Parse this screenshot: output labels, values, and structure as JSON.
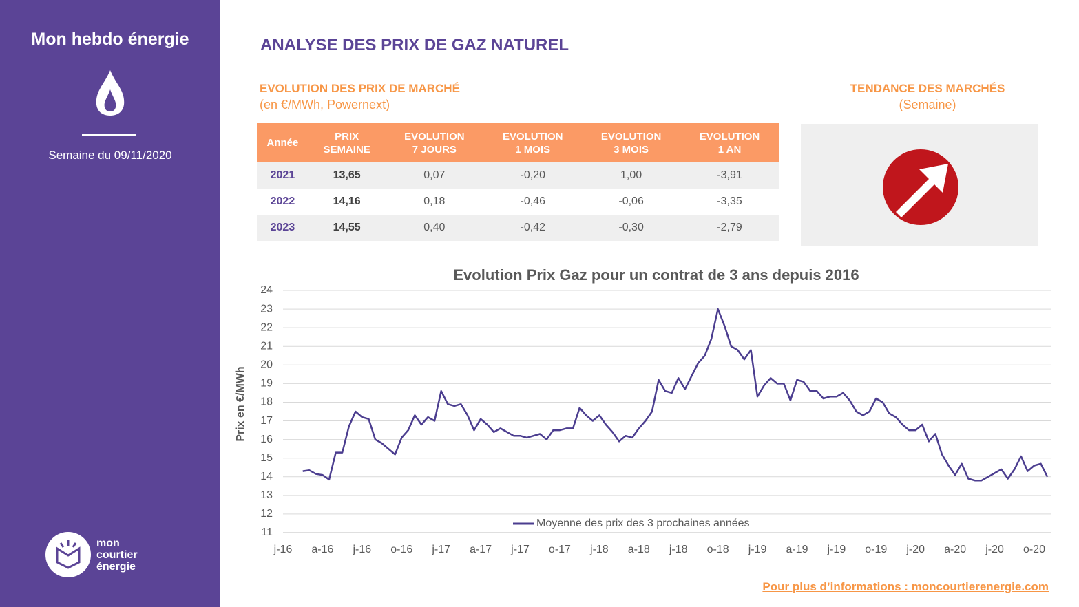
{
  "sidebar": {
    "title": "Mon hebdo énergie",
    "week": "Semaine du 09/11/2020",
    "logo_text": "mon\ncourtier\nénergie"
  },
  "header": {
    "title": "ANALYSE DES PRIX DE GAZ NATUREL"
  },
  "prices": {
    "title": "EVOLUTION DES PRIX DE MARCHÉ",
    "subtitle": "(en €/MWh, Powernext)"
  },
  "table": {
    "header": [
      "Année",
      "PRIX\nSEMAINE",
      "EVOLUTION\n7 JOURS",
      "EVOLUTION\n1 MOIS",
      "EVOLUTION\n3 MOIS",
      "EVOLUTION\n1 AN"
    ],
    "rows": [
      [
        "2021",
        "13,65",
        "0,07",
        "-0,20",
        "1,00",
        "-3,91"
      ],
      [
        "2022",
        "14,16",
        "0,18",
        "-0,46",
        "-0,06",
        "-3,35"
      ],
      [
        "2023",
        "14,55",
        "0,40",
        "-0,42",
        "-0,30",
        "-2,79"
      ]
    ]
  },
  "trend": {
    "title": "TENDANCE DES MARCHÉS",
    "subtitle": "(Semaine)"
  },
  "chart_data": {
    "type": "line",
    "title": "Evolution Prix Gaz pour un contrat de 3 ans depuis 2016",
    "y_label": "Prix en €/MWh",
    "categories": [
      "j-16",
      null,
      null,
      null,
      null,
      null,
      "a-16",
      null,
      null,
      null,
      null,
      null,
      "j-16",
      null,
      null,
      null,
      null,
      null,
      "o-16",
      null,
      null,
      null,
      null,
      null,
      "j-17",
      null,
      null,
      null,
      null,
      null,
      "a-17",
      null,
      null,
      null,
      null,
      null,
      "j-17",
      null,
      null,
      null,
      null,
      null,
      "o-17",
      null,
      null,
      null,
      null,
      null,
      "j-18",
      null,
      null,
      null,
      null,
      null,
      "a-18",
      null,
      null,
      null,
      null,
      null,
      "j-18",
      null,
      null,
      null,
      null,
      null,
      "o-18",
      null,
      null,
      null,
      null,
      null,
      "j-19",
      null,
      null,
      null,
      null,
      null,
      "a-19",
      null,
      null,
      null,
      null,
      null,
      "j-19",
      null,
      null,
      null,
      null,
      null,
      "o-19",
      null,
      null,
      null,
      null,
      null,
      "j-20",
      null,
      null,
      null,
      null,
      null,
      "a-20",
      null,
      null,
      null,
      null,
      null,
      "j-20",
      null,
      null,
      null,
      null,
      null,
      "o-20",
      null,
      null
    ],
    "series": [
      {
        "name": "Moyenne des prix des 3 prochaines années",
        "color": "#4b3d8f",
        "values": [
          null,
          null,
          null,
          14.3,
          14.35,
          14.15,
          14.1,
          13.85,
          15.3,
          15.3,
          16.7,
          17.5,
          17.2,
          17.1,
          16.0,
          15.8,
          15.5,
          15.2,
          16.1,
          16.5,
          17.3,
          16.8,
          17.2,
          17.0,
          18.6,
          17.9,
          17.8,
          17.9,
          17.3,
          16.5,
          17.1,
          16.8,
          16.4,
          16.6,
          16.4,
          16.2,
          16.2,
          16.1,
          16.2,
          16.3,
          16.0,
          16.5,
          16.5,
          16.6,
          16.6,
          17.7,
          17.3,
          17.0,
          17.3,
          16.8,
          16.4,
          15.9,
          16.2,
          16.1,
          16.6,
          17.0,
          17.5,
          19.2,
          18.6,
          18.5,
          19.3,
          18.7,
          19.4,
          20.1,
          20.5,
          21.4,
          23.0,
          22.1,
          21.0,
          20.8,
          20.3,
          20.8,
          18.3,
          18.9,
          19.3,
          19.0,
          19.0,
          18.1,
          19.2,
          19.1,
          18.6,
          18.6,
          18.2,
          18.3,
          18.3,
          18.5,
          18.1,
          17.5,
          17.3,
          17.5,
          18.2,
          18.0,
          17.4,
          17.2,
          16.8,
          16.5,
          16.5,
          16.8,
          15.9,
          16.3,
          15.2,
          14.6,
          14.1,
          14.7,
          13.9,
          13.8,
          13.8,
          14.0,
          14.2,
          14.4,
          13.9,
          14.4,
          15.1,
          14.3,
          14.6,
          14.7,
          14.0
        ]
      }
    ],
    "ylim": [
      11,
      24
    ],
    "yticks": [
      11,
      12,
      13,
      14,
      15,
      16,
      17,
      18,
      19,
      20,
      21,
      22,
      23,
      24
    ],
    "grid": true
  },
  "footer": {
    "link": "Pour plus d’informations : moncourtierenergie.com"
  }
}
